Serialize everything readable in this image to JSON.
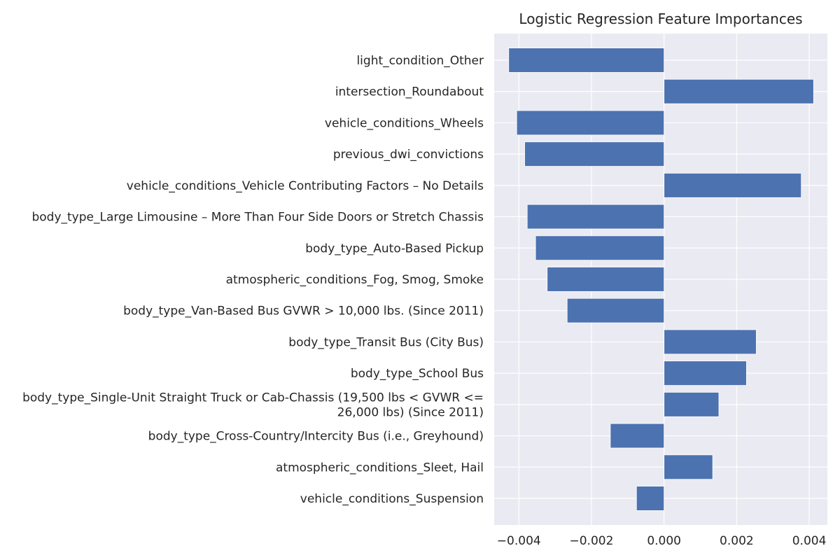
{
  "chart_data": {
    "type": "bar",
    "orientation": "horizontal",
    "title": "Logistic Regression Feature Importances",
    "xlabel": "",
    "ylabel": "",
    "categories": [
      "light_condition_Other",
      "intersection_Roundabout",
      "vehicle_conditions_Wheels",
      "previous_dwi_convictions",
      "vehicle_conditions_Vehicle Contributing Factors – No Details",
      "body_type_Large Limousine – More Than Four Side Doors or Stretch Chassis",
      "body_type_Auto-Based Pickup",
      "atmospheric_conditions_Fog, Smog, Smoke",
      "body_type_Van-Based Bus GVWR > 10,000 lbs. (Since 2011)",
      "body_type_Transit Bus (City Bus)",
      "body_type_School Bus",
      "body_type_Single-Unit Straight Truck or Cab-Chassis (19,500 lbs < GVWR <= 26,000 lbs) (Since 2011)",
      "body_type_Cross-Country/Intercity Bus (i.e., Greyhound)",
      "atmospheric_conditions_Sleet, Hail",
      "vehicle_conditions_Suspension"
    ],
    "category_lines": [
      [
        "light_condition_Other"
      ],
      [
        "intersection_Roundabout"
      ],
      [
        "vehicle_conditions_Wheels"
      ],
      [
        "previous_dwi_convictions"
      ],
      [
        "vehicle_conditions_Vehicle Contributing Factors – No Details"
      ],
      [
        "body_type_Large Limousine – More Than Four Side Doors or Stretch Chassis"
      ],
      [
        "body_type_Auto-Based Pickup"
      ],
      [
        "atmospheric_conditions_Fog, Smog, Smoke"
      ],
      [
        "body_type_Van-Based Bus GVWR > 10,000 lbs. (Since 2011)"
      ],
      [
        "body_type_Transit Bus (City Bus)"
      ],
      [
        "body_type_School Bus"
      ],
      [
        "body_type_Single-Unit Straight Truck or Cab-Chassis (19,500 lbs < GVWR <=",
        "26,000 lbs) (Since 2011)"
      ],
      [
        "body_type_Cross-Country/Intercity Bus (i.e., Greyhound)"
      ],
      [
        "atmospheric_conditions_Sleet, Hail"
      ],
      [
        "vehicle_conditions_Suspension"
      ]
    ],
    "values": [
      -0.00428,
      0.00412,
      -0.00406,
      -0.00384,
      0.00378,
      -0.00377,
      -0.00354,
      -0.00322,
      -0.00267,
      0.00254,
      0.00227,
      0.00151,
      -0.00148,
      0.00134,
      -0.00076
    ],
    "xlim": [
      -0.00468,
      0.0045
    ],
    "xticks": [
      -0.004,
      -0.002,
      0.0,
      0.002,
      0.004
    ],
    "xtick_labels": [
      "−0.004",
      "−0.002",
      "0.000",
      "0.002",
      "0.004"
    ],
    "grid": true,
    "colors": {
      "bar": "#4c72b0",
      "plot_background": "#eaeaf2",
      "grid": "#ffffff",
      "text": "#262626"
    }
  }
}
